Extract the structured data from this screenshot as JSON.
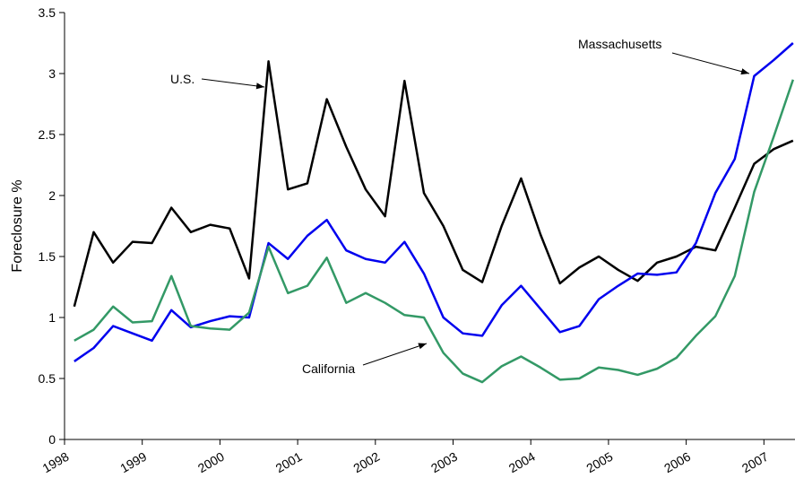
{
  "chart_data": {
    "type": "line",
    "y_label": "Foreclosure %",
    "x": [
      1998.125,
      1998.375,
      1998.625,
      1998.875,
      1999.125,
      1999.375,
      1999.625,
      1999.875,
      2000.125,
      2000.375,
      2000.625,
      2000.875,
      2001.125,
      2001.375,
      2001.625,
      2001.875,
      2002.125,
      2002.375,
      2002.625,
      2002.875,
      2003.125,
      2003.375,
      2003.625,
      2003.875,
      2004.125,
      2004.375,
      2004.625,
      2004.875,
      2005.125,
      2005.375,
      2005.625,
      2005.875,
      2006.125,
      2006.375,
      2006.625,
      2006.875,
      2007.125,
      2007.375
    ],
    "series": [
      {
        "name": "U.S.",
        "color": "#000000",
        "values": [
          1.09,
          1.7,
          1.45,
          1.62,
          1.61,
          1.9,
          1.7,
          1.76,
          1.73,
          1.32,
          3.1,
          2.05,
          2.1,
          2.79,
          2.4,
          2.05,
          1.83,
          2.94,
          2.02,
          1.75,
          1.39,
          1.29,
          1.75,
          2.14,
          1.68,
          1.28,
          1.41,
          1.5,
          1.39,
          1.3,
          1.45,
          1.5,
          1.58,
          1.55,
          1.9,
          2.26,
          2.38,
          2.45
        ]
      },
      {
        "name": "Massachusetts",
        "color": "#0000ee",
        "values": [
          0.64,
          0.75,
          0.93,
          0.87,
          0.81,
          1.06,
          0.92,
          0.97,
          1.01,
          1.0,
          1.61,
          1.48,
          1.67,
          1.8,
          1.55,
          1.48,
          1.45,
          1.62,
          1.36,
          1.0,
          0.87,
          0.85,
          1.1,
          1.26,
          1.07,
          0.88,
          0.93,
          1.15,
          1.26,
          1.36,
          1.35,
          1.37,
          1.61,
          2.02,
          2.3,
          2.98,
          3.11,
          3.25
        ]
      },
      {
        "name": "California",
        "color": "#339966",
        "values": [
          0.81,
          0.9,
          1.09,
          0.96,
          0.97,
          1.34,
          0.93,
          0.91,
          0.9,
          1.04,
          1.58,
          1.2,
          1.26,
          1.49,
          1.12,
          1.2,
          1.12,
          1.02,
          1.0,
          0.71,
          0.54,
          0.47,
          0.6,
          0.68,
          0.59,
          0.49,
          0.5,
          0.59,
          0.57,
          0.53,
          0.58,
          0.67,
          0.85,
          1.01,
          1.34,
          2.03,
          2.48,
          2.95
        ]
      }
    ],
    "xlim": [
      1998,
      2007.4
    ],
    "xticks": [
      1998,
      1999,
      2000,
      2001,
      2002,
      2003,
      2004,
      2005,
      2006,
      2007
    ],
    "ylim": [
      0,
      3.5
    ],
    "yticks": [
      0,
      0.5,
      1,
      1.5,
      2,
      2.5,
      3,
      3.5
    ],
    "grid": false
  }
}
